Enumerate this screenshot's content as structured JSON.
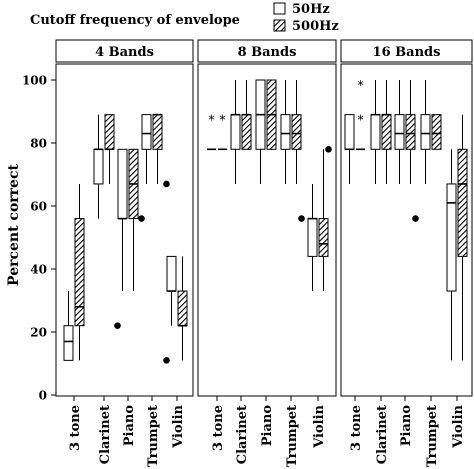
{
  "legend": {
    "title": "Cutoff frequency of envelope",
    "items": [
      {
        "label": "50Hz",
        "fill": "open"
      },
      {
        "label": "500Hz",
        "fill": "hatched"
      }
    ]
  },
  "chart_data": {
    "type": "boxplot",
    "ylabel": "Percent correct",
    "ylim": [
      0,
      105
    ],
    "yticks": [
      0,
      20,
      40,
      60,
      80,
      100
    ],
    "categories": [
      "3 tone",
      "Clarinet",
      "Piano",
      "Trumpet",
      "Violin"
    ],
    "series_names": [
      "50Hz",
      "500Hz"
    ],
    "panels": [
      {
        "title": "4 Bands",
        "boxes": [
          {
            "category": "3 tone",
            "series": "50Hz",
            "whisker_low": 11,
            "q1": 11,
            "median": 17,
            "q3": 22,
            "whisker_high": 33,
            "outliers": []
          },
          {
            "category": "3 tone",
            "series": "500Hz",
            "whisker_low": 11,
            "q1": 22,
            "median": 28,
            "q3": 56,
            "whisker_high": 67,
            "outliers": []
          },
          {
            "category": "Clarinet",
            "series": "50Hz",
            "whisker_low": 56,
            "q1": 67,
            "median": 78,
            "q3": 78,
            "whisker_high": 89,
            "outliers": []
          },
          {
            "category": "Clarinet",
            "series": "500Hz",
            "whisker_low": 67,
            "q1": 78,
            "median": 78,
            "q3": 89,
            "whisker_high": 89,
            "outliers": []
          },
          {
            "category": "Piano",
            "series": "50Hz",
            "whisker_low": 33,
            "q1": 56,
            "median": 56,
            "q3": 78,
            "whisker_high": 78,
            "outliers": [
              22
            ]
          },
          {
            "category": "Piano",
            "series": "500Hz",
            "whisker_low": 33,
            "q1": 56,
            "median": 67,
            "q3": 78,
            "whisker_high": 78,
            "outliers": []
          },
          {
            "category": "Trumpet",
            "series": "50Hz",
            "whisker_low": 67,
            "q1": 78,
            "median": 83,
            "q3": 89,
            "whisker_high": 89,
            "outliers": [
              56
            ]
          },
          {
            "category": "Trumpet",
            "series": "500Hz",
            "whisker_low": 67,
            "q1": 78,
            "median": 89,
            "q3": 89,
            "whisker_high": 89,
            "outliers": []
          },
          {
            "category": "Violin",
            "series": "50Hz",
            "whisker_low": 22,
            "q1": 33,
            "median": 33,
            "q3": 44,
            "whisker_high": 44,
            "outliers": [
              11,
              67
            ]
          },
          {
            "category": "Violin",
            "series": "500Hz",
            "whisker_low": 11,
            "q1": 22,
            "median": 22,
            "q3": 33,
            "whisker_high": 44,
            "outliers": []
          }
        ],
        "stars": []
      },
      {
        "title": "8 Bands",
        "boxes": [
          {
            "category": "3 tone",
            "series": "50Hz",
            "whisker_low": 78,
            "q1": 78,
            "median": 78,
            "q3": 78,
            "whisker_high": 78,
            "outliers": []
          },
          {
            "category": "3 tone",
            "series": "500Hz",
            "whisker_low": 78,
            "q1": 78,
            "median": 78,
            "q3": 78,
            "whisker_high": 78,
            "outliers": []
          },
          {
            "category": "Clarinet",
            "series": "50Hz",
            "whisker_low": 67,
            "q1": 78,
            "median": 89,
            "q3": 89,
            "whisker_high": 100,
            "outliers": []
          },
          {
            "category": "Clarinet",
            "series": "500Hz",
            "whisker_low": 78,
            "q1": 78,
            "median": 89,
            "q3": 89,
            "whisker_high": 100,
            "outliers": []
          },
          {
            "category": "Piano",
            "series": "50Hz",
            "whisker_low": 67,
            "q1": 78,
            "median": 89,
            "q3": 100,
            "whisker_high": 100,
            "outliers": []
          },
          {
            "category": "Piano",
            "series": "500Hz",
            "whisker_low": 78,
            "q1": 78,
            "median": 89,
            "q3": 100,
            "whisker_high": 100,
            "outliers": []
          },
          {
            "category": "Trumpet",
            "series": "50Hz",
            "whisker_low": 67,
            "q1": 78,
            "median": 83,
            "q3": 89,
            "whisker_high": 100,
            "outliers": []
          },
          {
            "category": "Trumpet",
            "series": "500Hz",
            "whisker_low": 67,
            "q1": 78,
            "median": 83,
            "q3": 89,
            "whisker_high": 100,
            "outliers": [
              56
            ]
          },
          {
            "category": "Violin",
            "series": "50Hz",
            "whisker_low": 33,
            "q1": 44,
            "median": 56,
            "q3": 56,
            "whisker_high": 67,
            "outliers": []
          },
          {
            "category": "Violin",
            "series": "500Hz",
            "whisker_low": 33,
            "q1": 44,
            "median": 48,
            "q3": 56,
            "whisker_high": 78,
            "outliers": [
              78
            ]
          }
        ],
        "stars": [
          {
            "category": "3 tone",
            "series": "50Hz",
            "y": 89
          },
          {
            "category": "3 tone",
            "series": "500Hz",
            "y": 89
          }
        ]
      },
      {
        "title": "16 Bands",
        "boxes": [
          {
            "category": "3 tone",
            "series": "50Hz",
            "whisker_low": 67,
            "q1": 78,
            "median": 78,
            "q3": 89,
            "whisker_high": 89,
            "outliers": []
          },
          {
            "category": "3 tone",
            "series": "500Hz",
            "whisker_low": 78,
            "q1": 78,
            "median": 78,
            "q3": 78,
            "whisker_high": 78,
            "outliers": []
          },
          {
            "category": "Clarinet",
            "series": "50Hz",
            "whisker_low": 67,
            "q1": 78,
            "median": 89,
            "q3": 89,
            "whisker_high": 100,
            "outliers": []
          },
          {
            "category": "Clarinet",
            "series": "500Hz",
            "whisker_low": 67,
            "q1": 78,
            "median": 89,
            "q3": 89,
            "whisker_high": 100,
            "outliers": []
          },
          {
            "category": "Piano",
            "series": "50Hz",
            "whisker_low": 67,
            "q1": 78,
            "median": 83,
            "q3": 89,
            "whisker_high": 100,
            "outliers": []
          },
          {
            "category": "Piano",
            "series": "500Hz",
            "whisker_low": 67,
            "q1": 78,
            "median": 83,
            "q3": 89,
            "whisker_high": 100,
            "outliers": [
              56
            ]
          },
          {
            "category": "Trumpet",
            "series": "50Hz",
            "whisker_low": 67,
            "q1": 78,
            "median": 83,
            "q3": 89,
            "whisker_high": 100,
            "outliers": []
          },
          {
            "category": "Trumpet",
            "series": "500Hz",
            "whisker_low": 78,
            "q1": 78,
            "median": 83,
            "q3": 89,
            "whisker_high": 89,
            "outliers": []
          },
          {
            "category": "Violin",
            "series": "50Hz",
            "whisker_low": 11,
            "q1": 33,
            "median": 61,
            "q3": 67,
            "whisker_high": 78,
            "outliers": []
          },
          {
            "category": "Violin",
            "series": "500Hz",
            "whisker_low": 11,
            "q1": 44,
            "median": 67,
            "q3": 78,
            "whisker_high": 89,
            "outliers": []
          }
        ],
        "stars": [
          {
            "category": "3 tone",
            "series": "500Hz",
            "y": 100
          },
          {
            "category": "3 tone",
            "series": "500Hz",
            "y": 89
          }
        ]
      }
    ]
  }
}
